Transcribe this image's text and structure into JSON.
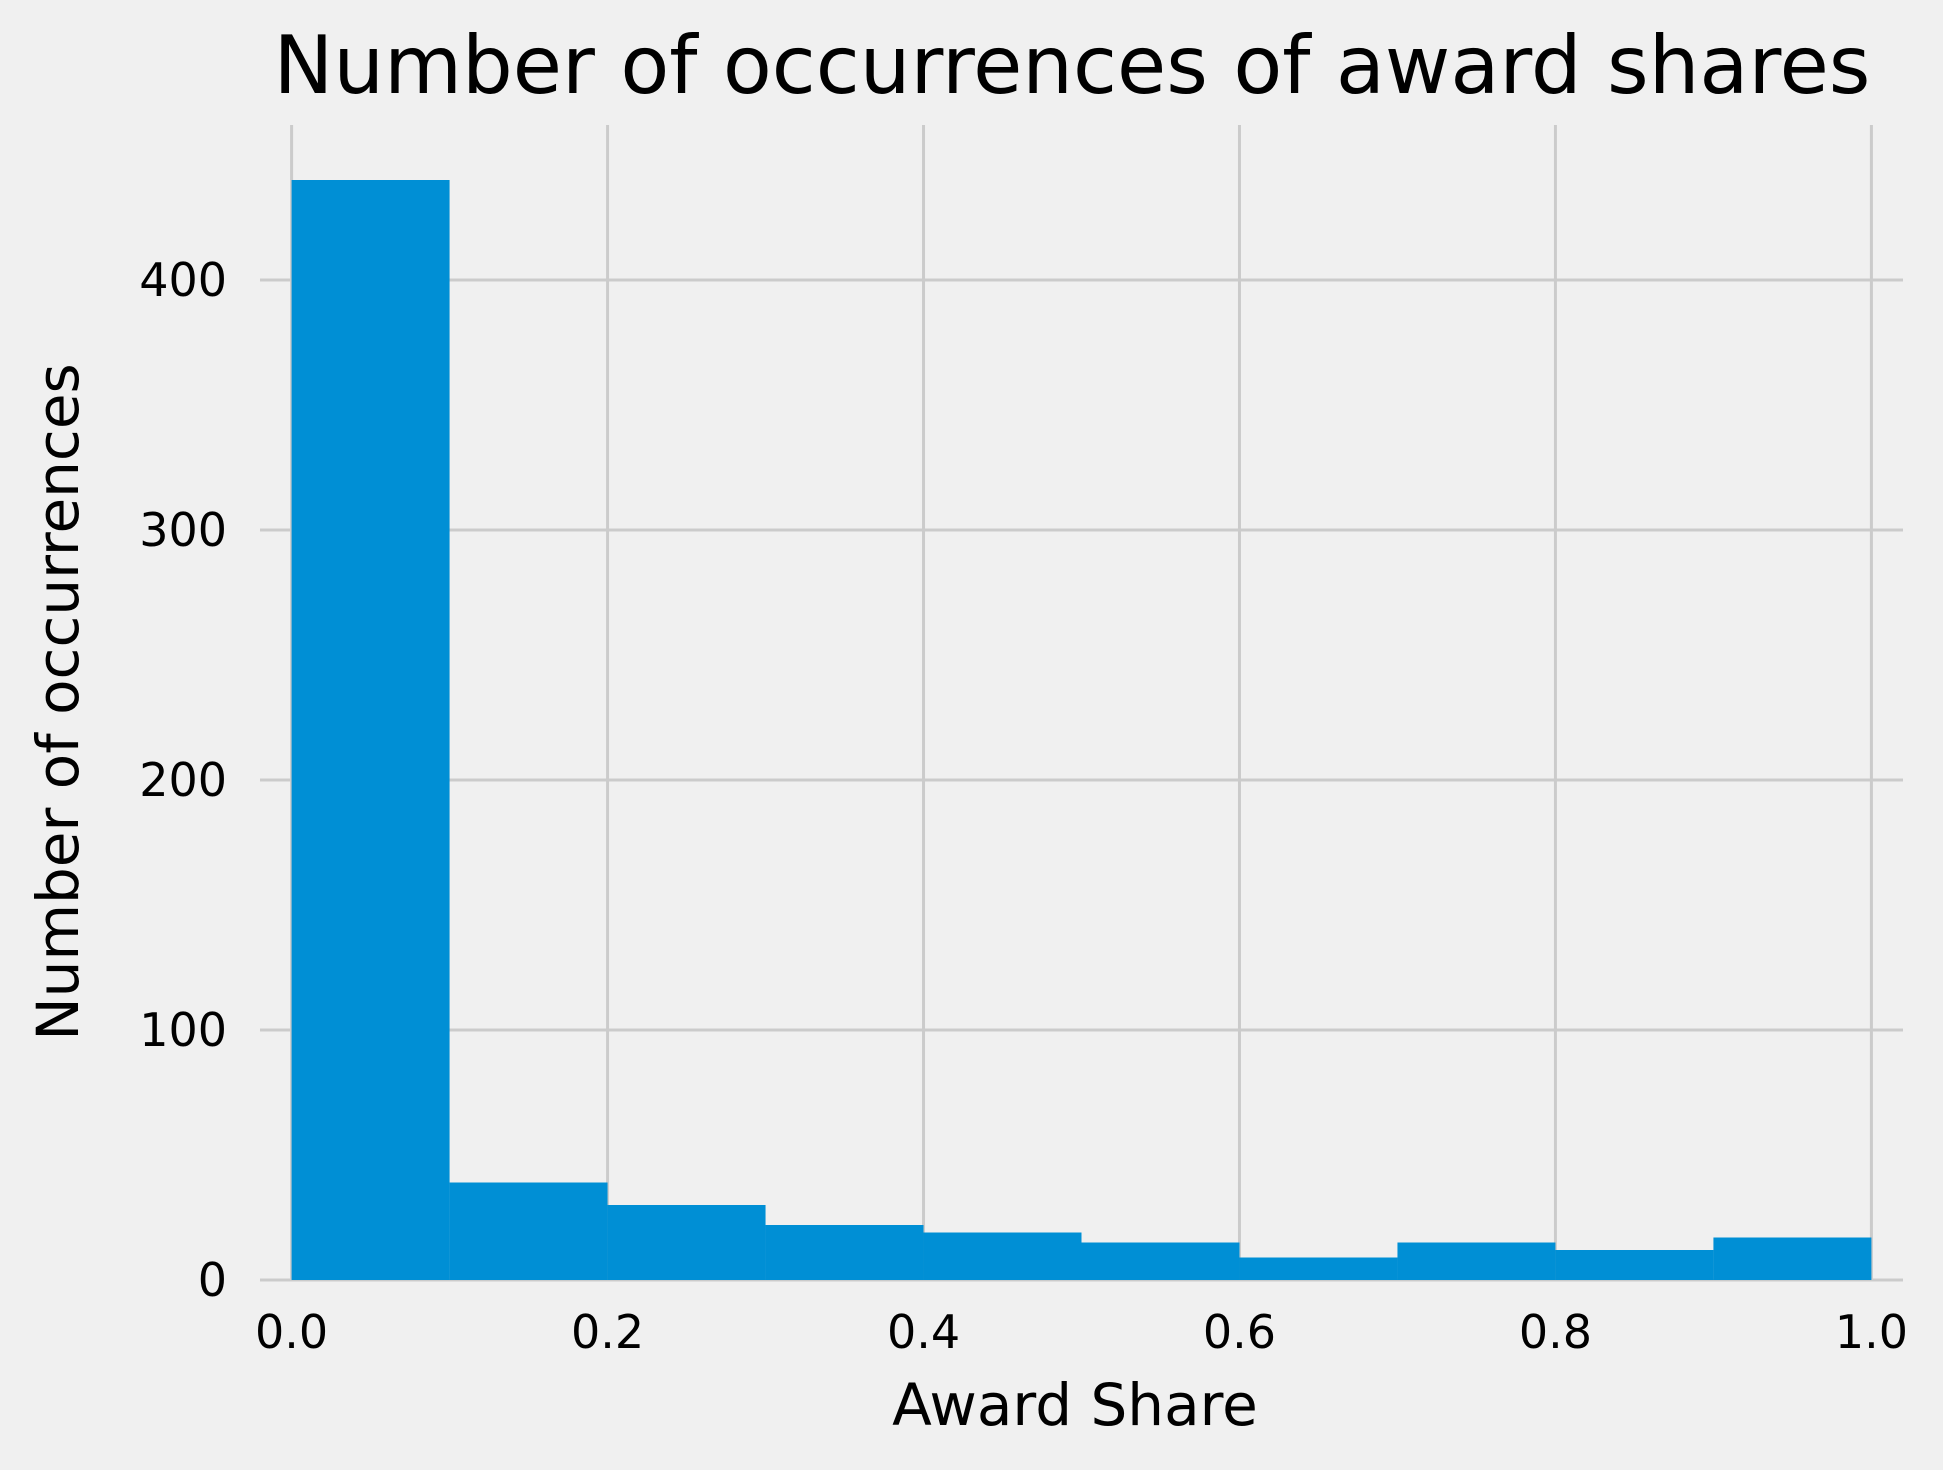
{
  "chart_data": {
    "type": "bar",
    "title": "Number of occurrences of award shares",
    "xlabel": "Award Share",
    "ylabel": "Number of occurrences",
    "bins": [
      {
        "x0": 0.0,
        "x1": 0.1,
        "count": 440
      },
      {
        "x0": 0.1,
        "x1": 0.2,
        "count": 39
      },
      {
        "x0": 0.2,
        "x1": 0.3,
        "count": 30
      },
      {
        "x0": 0.3,
        "x1": 0.4,
        "count": 22
      },
      {
        "x0": 0.4,
        "x1": 0.5,
        "count": 19
      },
      {
        "x0": 0.5,
        "x1": 0.6,
        "count": 15
      },
      {
        "x0": 0.6,
        "x1": 0.7,
        "count": 9
      },
      {
        "x0": 0.7,
        "x1": 0.8,
        "count": 15
      },
      {
        "x0": 0.8,
        "x1": 0.9,
        "count": 12
      },
      {
        "x0": 0.9,
        "x1": 1.0,
        "count": 17
      }
    ],
    "xlim": [
      -0.02,
      1.02
    ],
    "ylim": [
      0,
      462
    ],
    "xticks": [
      {
        "value": 0.0,
        "label": "0.0"
      },
      {
        "value": 0.2,
        "label": "0.2"
      },
      {
        "value": 0.4,
        "label": "0.4"
      },
      {
        "value": 0.6,
        "label": "0.6"
      },
      {
        "value": 0.8,
        "label": "0.8"
      },
      {
        "value": 1.0,
        "label": "1.0"
      }
    ],
    "yticks": [
      {
        "value": 0,
        "label": "0"
      },
      {
        "value": 100,
        "label": "100"
      },
      {
        "value": 200,
        "label": "200"
      },
      {
        "value": 300,
        "label": "300"
      },
      {
        "value": 400,
        "label": "400"
      }
    ],
    "grid": true,
    "bar_color": "#008fd5",
    "grid_color": "#cbcbcb",
    "background_color": "#f0f0f0"
  }
}
